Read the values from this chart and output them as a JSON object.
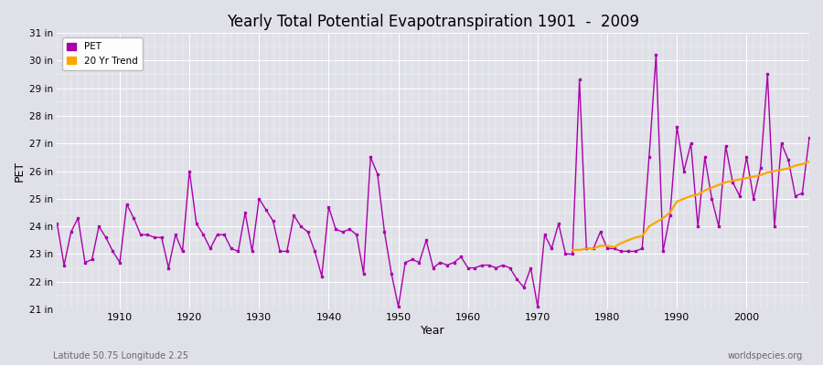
{
  "title": "Yearly Total Potential Evapotranspiration 1901  -  2009",
  "xlabel": "Year",
  "ylabel": "PET",
  "subtitle_left": "Latitude 50.75 Longitude 2.25",
  "subtitle_right": "worldspecies.org",
  "pet_color": "#aa00aa",
  "trend_color": "#FFA500",
  "bg_color": "#e0e0e8",
  "ylim_min": 21,
  "ylim_max": 31,
  "xlim_min": 1901,
  "xlim_max": 2009,
  "years": [
    1901,
    1902,
    1903,
    1904,
    1905,
    1906,
    1907,
    1908,
    1909,
    1910,
    1911,
    1912,
    1913,
    1914,
    1915,
    1916,
    1917,
    1918,
    1919,
    1920,
    1921,
    1922,
    1923,
    1924,
    1925,
    1926,
    1927,
    1928,
    1929,
    1930,
    1931,
    1932,
    1933,
    1934,
    1935,
    1936,
    1937,
    1938,
    1939,
    1940,
    1941,
    1942,
    1943,
    1944,
    1945,
    1946,
    1947,
    1948,
    1949,
    1950,
    1951,
    1952,
    1953,
    1954,
    1955,
    1956,
    1957,
    1958,
    1959,
    1960,
    1961,
    1962,
    1963,
    1964,
    1965,
    1966,
    1967,
    1968,
    1969,
    1970,
    1971,
    1972,
    1973,
    1974,
    1975,
    1976,
    1977,
    1978,
    1979,
    1980,
    1981,
    1982,
    1983,
    1984,
    1985,
    1986,
    1987,
    1988,
    1989,
    1990,
    1991,
    1992,
    1993,
    1994,
    1995,
    1996,
    1997,
    1998,
    1999,
    2000,
    2001,
    2002,
    2003,
    2004,
    2005,
    2006,
    2007,
    2008,
    2009
  ],
  "pet_values": [
    24.1,
    22.6,
    23.8,
    24.3,
    22.7,
    22.8,
    24.0,
    23.6,
    23.1,
    22.7,
    24.8,
    24.3,
    23.7,
    23.7,
    23.6,
    23.6,
    22.5,
    23.7,
    23.1,
    26.0,
    24.1,
    23.7,
    23.2,
    23.7,
    23.7,
    23.2,
    23.1,
    24.5,
    23.1,
    25.0,
    24.6,
    24.2,
    23.1,
    23.1,
    24.4,
    24.0,
    23.8,
    23.1,
    22.2,
    24.7,
    23.9,
    23.8,
    23.9,
    23.7,
    22.3,
    26.5,
    25.9,
    23.8,
    22.3,
    21.1,
    22.7,
    22.8,
    22.7,
    23.5,
    22.5,
    22.7,
    22.6,
    22.7,
    22.9,
    22.5,
    22.5,
    22.6,
    22.6,
    22.5,
    22.6,
    22.5,
    22.1,
    21.8,
    22.5,
    21.1,
    23.7,
    23.2,
    24.1,
    23.0,
    23.0,
    29.3,
    23.2,
    23.2,
    23.8,
    23.2,
    23.2,
    23.1,
    23.1,
    23.1,
    23.2,
    26.5,
    30.2,
    23.1,
    24.4,
    27.6,
    26.0,
    27.0,
    24.0,
    26.5,
    25.0,
    24.0,
    26.9,
    25.6,
    25.1,
    26.5,
    25.0,
    26.1,
    29.5,
    24.0,
    27.0,
    26.4,
    25.1,
    25.2,
    27.2
  ],
  "trend_years": [
    1975,
    1976,
    1977,
    1978,
    1979,
    1980,
    1981,
    1982,
    1983,
    1984,
    1985,
    1986,
    1987,
    1988,
    1989,
    1990,
    1991,
    1992,
    1993,
    1994,
    1995,
    1996,
    1997,
    1998,
    1999,
    2000,
    2001,
    2002,
    2003,
    2004,
    2005,
    2006,
    2007,
    2008,
    2009
  ],
  "trend_values": [
    23.15,
    23.15,
    23.2,
    23.2,
    23.3,
    23.3,
    23.25,
    23.4,
    23.5,
    23.6,
    23.65,
    24.0,
    24.15,
    24.3,
    24.5,
    24.9,
    25.0,
    25.1,
    25.15,
    25.3,
    25.4,
    25.5,
    25.6,
    25.65,
    25.7,
    25.75,
    25.8,
    25.85,
    25.95,
    26.0,
    26.05,
    26.1,
    26.2,
    26.25,
    26.35
  ]
}
